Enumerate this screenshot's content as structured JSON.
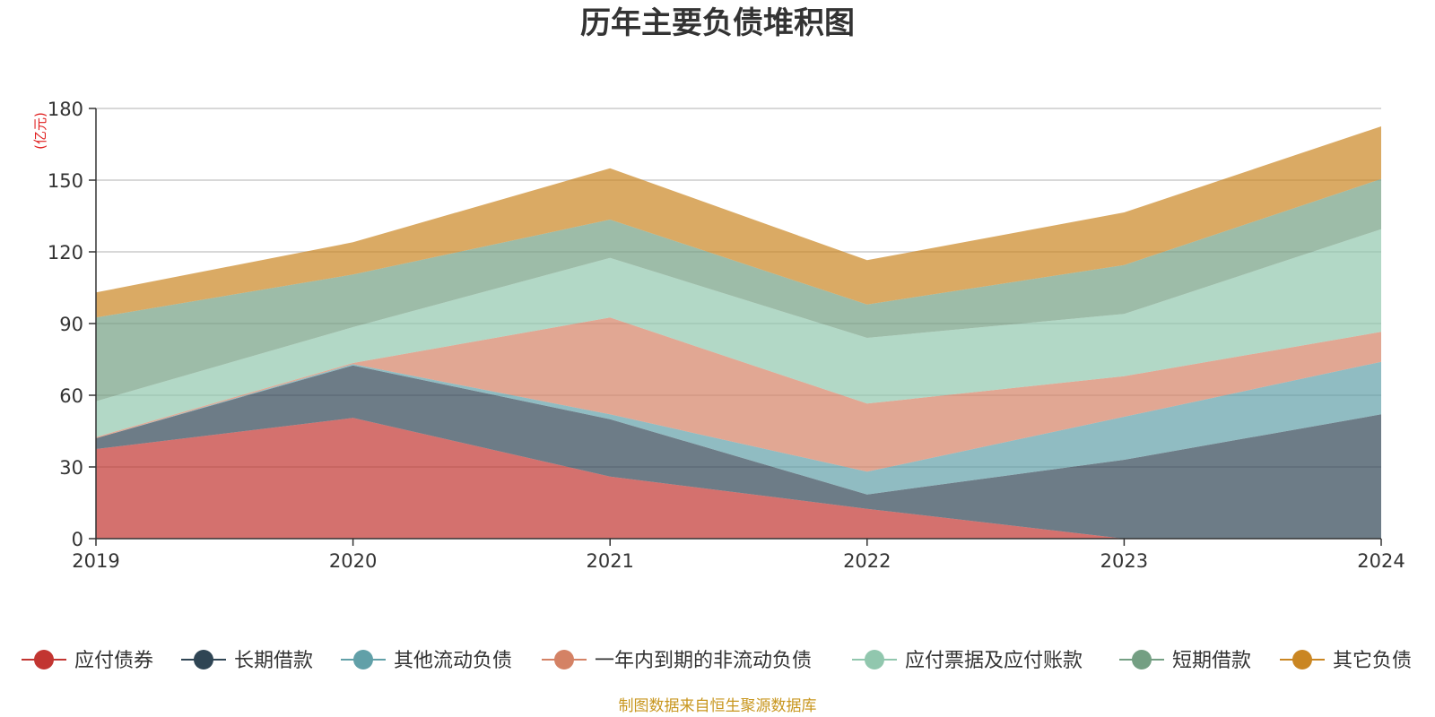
{
  "chart_data": {
    "type": "area",
    "stacked": true,
    "title": "历年主要负债堆积图",
    "unit_label": "(亿元)",
    "categories": [
      "2019",
      "2020",
      "2021",
      "2022",
      "2023",
      "2024"
    ],
    "ylim": [
      0,
      180
    ],
    "yticks": [
      0,
      30,
      60,
      90,
      120,
      150,
      180
    ],
    "grid": true,
    "legend_position": "bottom",
    "series": [
      {
        "name": "应付债券",
        "color": "#c23531",
        "values": [
          37.5,
          50.5,
          26,
          12.5,
          0,
          0
        ]
      },
      {
        "name": "长期借款",
        "color": "#2f4554",
        "values": [
          4.5,
          22,
          24,
          6,
          33,
          52
        ]
      },
      {
        "name": "其他流动负债",
        "color": "#61a0a8",
        "values": [
          0,
          0.5,
          2,
          9.5,
          18,
          22
        ]
      },
      {
        "name": "一年内到期的非流动负债",
        "color": "#d48265",
        "values": [
          0.5,
          0.5,
          40.5,
          28.5,
          17,
          12.5
        ]
      },
      {
        "name": "应付票据及应付账款",
        "color": "#91c7ae",
        "values": [
          15,
          15,
          25,
          27.5,
          26,
          43
        ]
      },
      {
        "name": "短期借款",
        "color": "#749f83",
        "values": [
          35,
          22,
          16,
          14,
          20.5,
          21
        ]
      },
      {
        "name": "其它负债",
        "color": "#ca8622",
        "values": [
          10.5,
          13.5,
          21.5,
          18.5,
          22,
          22
        ]
      }
    ]
  },
  "source": "制图数据来自恒生聚源数据库"
}
